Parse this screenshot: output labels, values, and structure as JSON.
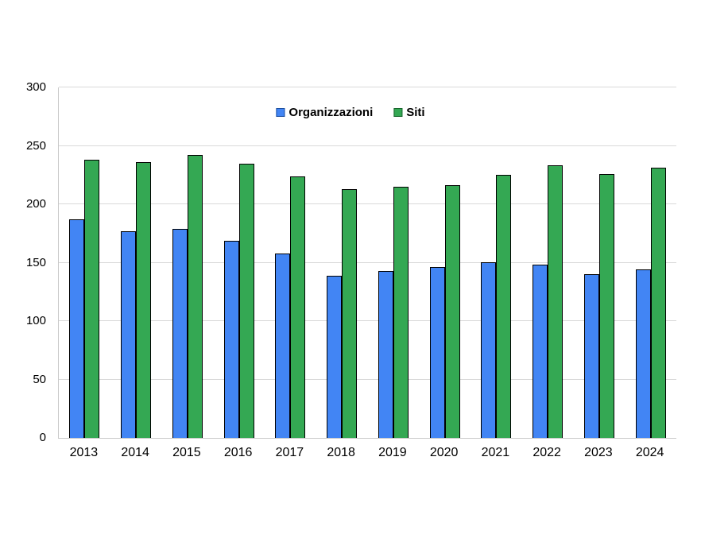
{
  "chart_data": {
    "type": "bar",
    "title": "",
    "xlabel": "",
    "ylabel": "",
    "categories": [
      "2013",
      "2014",
      "2015",
      "2016",
      "2017",
      "2018",
      "2019",
      "2020",
      "2021",
      "2022",
      "2023",
      "2024"
    ],
    "series": [
      {
        "name": "Organizzazioni",
        "color": "#4285F4",
        "border_color": "#000000",
        "swatch_border_color": "#1c4fa0",
        "values": [
          187,
          177,
          179,
          169,
          158,
          139,
          143,
          146,
          150,
          148,
          140,
          144
        ]
      },
      {
        "name": "Siti",
        "color": "#34A853",
        "border_color": "#000000",
        "swatch_border_color": "#17652c",
        "values": [
          238,
          236,
          242,
          235,
          224,
          213,
          215,
          216,
          225,
          233,
          226,
          231
        ]
      }
    ],
    "ylim": [
      0,
      300
    ],
    "yticks": [
      0,
      50,
      100,
      150,
      200,
      250,
      300
    ],
    "grid": "horizontal",
    "gridline_color": "#d9d9d9",
    "axis_line_color": "#c9c9c9",
    "background": "#ffffff",
    "legend_position": "top-center"
  }
}
